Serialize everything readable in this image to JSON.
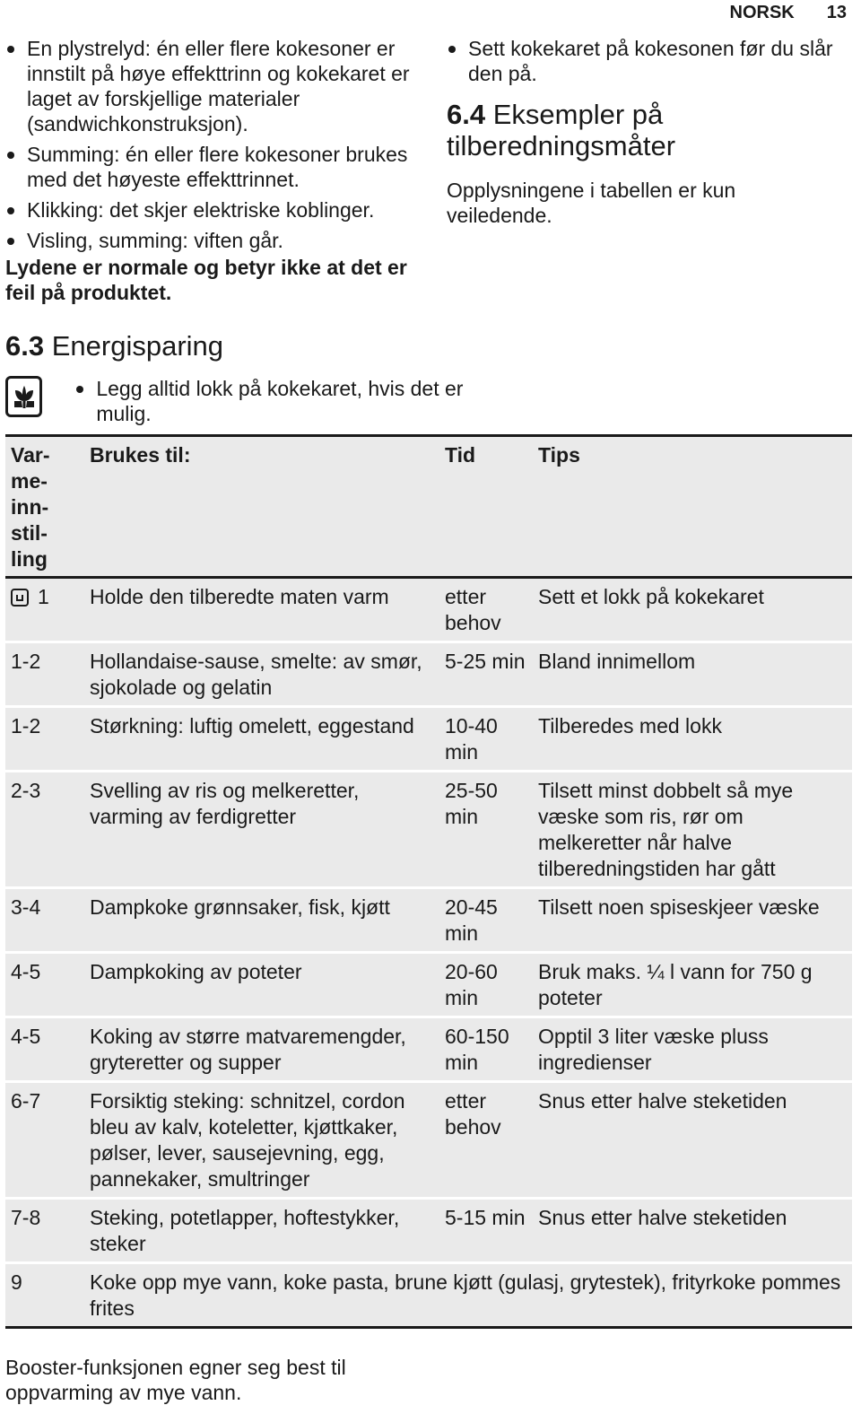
{
  "header": {
    "language": "NORSK",
    "page_number": "13"
  },
  "left_column": {
    "bullets": [
      "En plystrelyd: én eller flere kokesoner er innstilt på høye effekttrinn og kokekaret er laget av forskjellige materialer (sandwichkonstruksjon).",
      "Summing: én eller flere kokesoner brukes med det høyeste effekttrinnet.",
      "Klikking: det skjer elektriske koblinger.",
      "Visling, summing: viften går."
    ],
    "note": "Lydene er normale og betyr ikke at det er feil på produktet."
  },
  "right_column": {
    "bullets": [
      "Sett kokekaret på kokesonen før du slår den på."
    ],
    "section_number": "6.4",
    "section_title": "Eksempler på tilberedningsmåter",
    "intro": "Opplysningene i tabellen er kun veiledende."
  },
  "energy": {
    "section_number": "6.3",
    "section_title": "Energisparing",
    "icon": "eco-flower-icon",
    "bullet": "Legg alltid lokk på kokekaret, hvis det er mulig."
  },
  "table": {
    "headers": {
      "setting": "Varmeinnstilling",
      "use": "Brukes til:",
      "time": "Tid",
      "tips": "Tips"
    },
    "rows": [
      {
        "setting": "1",
        "use": "Holde den tilberedte maten varm",
        "time": "etter behov",
        "tips": "Sett et lokk på kokekaret"
      },
      {
        "setting": "1-2",
        "use": "Hollandaise-sause, smelte: av smør, sjokolade og gelatin",
        "time": "5-25 min",
        "tips": "Bland innimellom"
      },
      {
        "setting": "1-2",
        "use": "Størkning: luftig omelett, eggestand",
        "time": "10-40 min",
        "tips": "Tilberedes med lokk"
      },
      {
        "setting": "2-3",
        "use": "Svelling av ris og melkeretter, varming av ferdigretter",
        "time": "25-50 min",
        "tips": "Tilsett minst dobbelt så mye væske som ris, rør om melkeretter når halve tilberedningstiden har gått"
      },
      {
        "setting": "3-4",
        "use": "Dampkoke grønnsaker, fisk, kjøtt",
        "time": "20-45 min",
        "tips": "Tilsett noen spiseskjeer væske"
      },
      {
        "setting": "4-5",
        "use": "Dampkoking av poteter",
        "time": "20-60 min",
        "tips": "Bruk maks. ¼ l vann for 750 g poteter"
      },
      {
        "setting": "4-5",
        "use": "Koking av større matvaremengder, gryteretter og supper",
        "time": "60-150 min",
        "tips": "Opptil 3 liter væske pluss ingredienser"
      },
      {
        "setting": "6-7",
        "use": "Forsiktig steking: schnitzel, cordon bleu av kalv, koteletter, kjøttkaker, pølser, lever, sausejevning, egg, pannekaker, smultringer",
        "time": "etter behov",
        "tips": "Snus etter halve steketiden"
      },
      {
        "setting": "7-8",
        "use": "Steking, potetlapper, hoftestykker, steker",
        "time": "5-15 min",
        "tips": "Snus etter halve steketiden"
      }
    ],
    "last_row": {
      "setting": "9",
      "use": "Koke opp mye vann, koke pasta, brune kjøtt (gulasj, grytestek), frityrkoke pommes frites"
    }
  },
  "footer_note": "Booster-funksjonen egner seg best til oppvarming av mye vann."
}
